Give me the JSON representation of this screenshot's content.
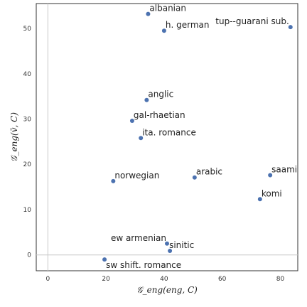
{
  "chart_data": {
    "type": "scatter",
    "title": "",
    "xlabel": "𝒢_eng(eng, C)",
    "ylabel": "𝒢_eng(v̄, C)",
    "xlim": [
      -4,
      86
    ],
    "ylim": [
      -3.5,
      55.5
    ],
    "x_ticks": [
      0,
      20,
      40,
      60,
      80
    ],
    "y_ticks": [
      0,
      10,
      20,
      30,
      40,
      50
    ],
    "reference_lines": {
      "x": 0,
      "y": 0
    },
    "grid": false,
    "marker_color": "#4c72b0",
    "points": [
      {
        "label": "albanian",
        "x": 34.5,
        "y": 53.2
      },
      {
        "label": "h. german",
        "x": 40.0,
        "y": 49.5
      },
      {
        "label": "tup--guarani sub.",
        "x": 83.5,
        "y": 50.3
      },
      {
        "label": "anglic",
        "x": 34.0,
        "y": 34.2
      },
      {
        "label": "gal-rhaetian",
        "x": 29.0,
        "y": 29.6
      },
      {
        "label": "ita. romance",
        "x": 32.0,
        "y": 25.8
      },
      {
        "label": "norwegian",
        "x": 22.5,
        "y": 16.3
      },
      {
        "label": "arabic",
        "x": 50.5,
        "y": 17.1
      },
      {
        "label": "saami",
        "x": 76.5,
        "y": 17.6
      },
      {
        "label": "komi",
        "x": 73.0,
        "y": 12.3
      },
      {
        "label": "ew armenian",
        "x": 41.0,
        "y": 2.5
      },
      {
        "label": "sinitic",
        "x": 42.0,
        "y": 0.9
      },
      {
        "label": "sw shift. romance",
        "x": 19.5,
        "y": -1.0
      }
    ]
  }
}
